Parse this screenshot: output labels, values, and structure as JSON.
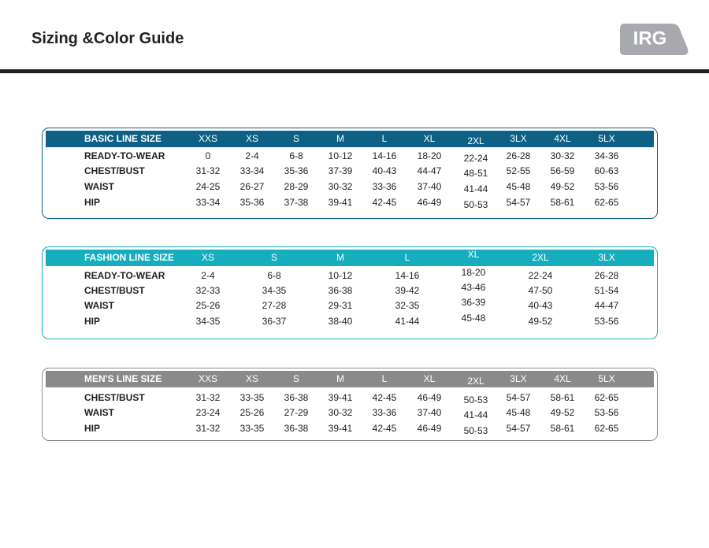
{
  "header": {
    "title": "Sizing &Color Guide",
    "logo": "IRG"
  },
  "tables": [
    {
      "header": [
        "BASIC LINE SIZE",
        "XXS",
        "XS",
        "S",
        "M",
        "L",
        "XL",
        "2XL",
        "3LX",
        "4XL",
        "5LX"
      ],
      "rows": [
        [
          "READY-TO-WEAR",
          "0",
          "2-4",
          "6-8",
          "10-12",
          "14-16",
          "18-20",
          "22-24",
          "26-28",
          "30-32",
          "34-36"
        ],
        [
          "CHEST/BUST",
          "31-32",
          "33-34",
          "35-36",
          "37-39",
          "40-43",
          "44-47",
          "48-51",
          "52-55",
          "56-59",
          "60-63"
        ],
        [
          "WAIST",
          "24-25",
          "26-27",
          "28-29",
          "30-32",
          "33-36",
          "37-40",
          "41-44",
          "45-48",
          "49-52",
          "53-56"
        ],
        [
          "HIP",
          "33-34",
          "35-36",
          "37-38",
          "39-41",
          "42-45",
          "46-49",
          "50-53",
          "54-57",
          "58-61",
          "62-65"
        ]
      ]
    },
    {
      "header": [
        "FASHION LINE SIZE",
        "XS",
        "S",
        "M",
        "L",
        "XL",
        "2XL",
        "3LX"
      ],
      "rows": [
        [
          "READY-TO-WEAR",
          "2-4",
          "6-8",
          "10-12",
          "14-16",
          "18-20",
          "22-24",
          "26-28"
        ],
        [
          "CHEST/BUST",
          "32-33",
          "34-35",
          "36-38",
          "39-42",
          "43-46",
          "47-50",
          "51-54"
        ],
        [
          "WAIST",
          "25-26",
          "27-28",
          "29-31",
          "32-35",
          "36-39",
          "40-43",
          "44-47"
        ],
        [
          "HIP",
          "34-35",
          "36-37",
          "38-40",
          "41-44",
          "45-48",
          "49-52",
          "53-56"
        ]
      ]
    },
    {
      "header": [
        "MEN'S LINE SIZE",
        "XXS",
        "XS",
        "S",
        "M",
        "L",
        "XL",
        "2XL",
        "3LX",
        "4XL",
        "5LX"
      ],
      "rows": [
        [
          "CHEST/BUST",
          "31-32",
          "33-35",
          "36-38",
          "39-41",
          "42-45",
          "46-49",
          "50-53",
          "54-57",
          "58-61",
          "62-65"
        ],
        [
          "WAIST",
          "23-24",
          "25-26",
          "27-29",
          "30-32",
          "33-36",
          "37-40",
          "41-44",
          "45-48",
          "49-52",
          "53-56"
        ],
        [
          "HIP",
          "31-32",
          "33-35",
          "36-38",
          "39-41",
          "42-45",
          "46-49",
          "50-53",
          "54-57",
          "58-61",
          "62-65"
        ]
      ]
    }
  ]
}
